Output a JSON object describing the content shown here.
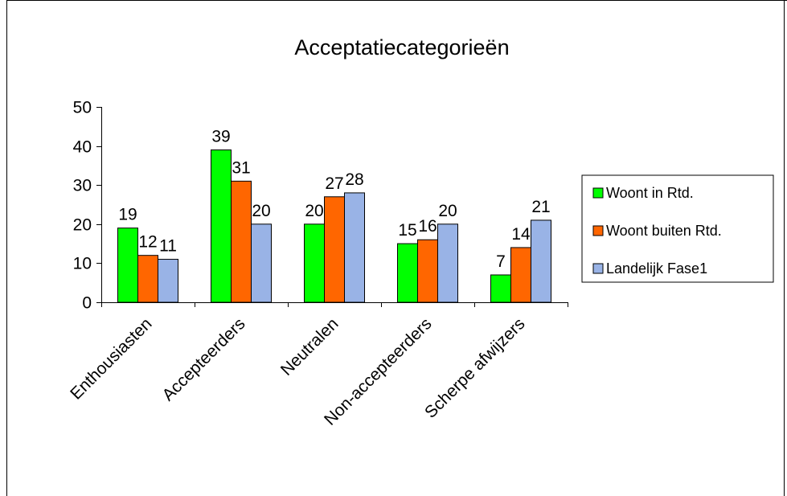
{
  "chart_data": {
    "type": "bar",
    "title": "Acceptatiecategorieën",
    "xlabel": "",
    "ylabel": "",
    "ylim": [
      0,
      50
    ],
    "yticks": [
      0,
      10,
      20,
      30,
      40,
      50
    ],
    "grid": false,
    "legend_position": "right",
    "categories": [
      "Enthousiasten",
      "Accepteerders",
      "Neutralen",
      "Non-accepteerders",
      "Scherpe afwijzers"
    ],
    "series": [
      {
        "name": "Woont in Rtd.",
        "color": "#00ff00",
        "values": [
          19,
          39,
          20,
          15,
          7
        ],
        "labels": [
          "19",
          "39",
          "20",
          "15",
          "7"
        ]
      },
      {
        "name": "Woont buiten Rtd.",
        "color": "#ff6600",
        "values": [
          12,
          31,
          27,
          16,
          14
        ],
        "labels": [
          "12",
          "31",
          "27",
          "16",
          "14"
        ]
      },
      {
        "name": "Landelijk Fase1",
        "color": "#99b3e6",
        "values": [
          11,
          20,
          28,
          20,
          21
        ],
        "labels": [
          "11",
          "20",
          "28",
          "20",
          "21"
        ]
      }
    ]
  }
}
